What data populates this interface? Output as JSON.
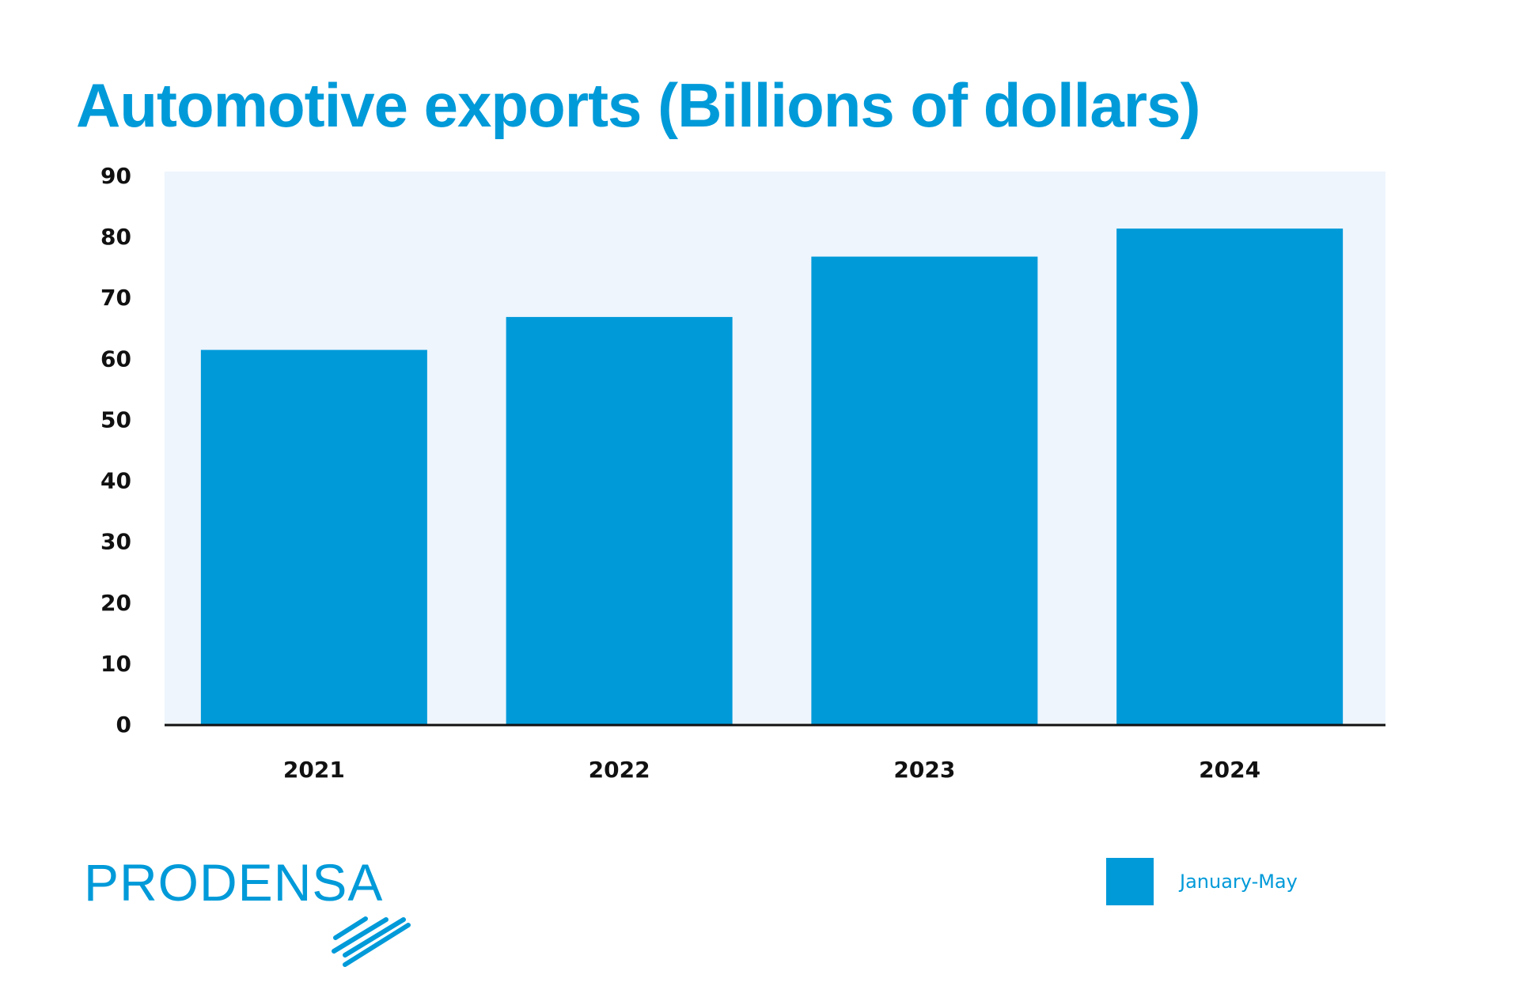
{
  "chart_data": {
    "type": "bar",
    "title": "Automotive exports (Billions of dollars)",
    "categories": [
      "2021",
      "2022",
      "2023",
      "2024"
    ],
    "series": [
      {
        "name": "January-May",
        "values": [
          61.4,
          66.8,
          76.7,
          81.3
        ]
      }
    ],
    "xlabel": "",
    "ylabel": "",
    "ylim": [
      0,
      90
    ],
    "yticks": [
      0,
      10,
      20,
      30,
      40,
      50,
      60,
      70,
      80,
      90
    ],
    "grid": false,
    "legend": "bottom-right",
    "colors": {
      "bar": "#009ad9",
      "plot_background": "#eef5fc",
      "title": "#009ad9"
    }
  },
  "logo": {
    "text": "PRODENSA"
  }
}
